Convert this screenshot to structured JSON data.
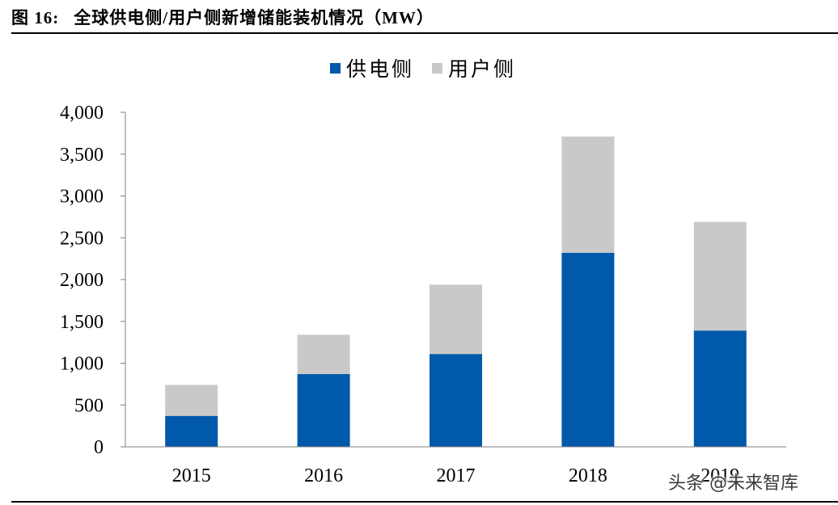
{
  "figure_label": "图 16:",
  "figure_title": "全球供电侧/用户侧新增储能装机情况（MW）",
  "watermark": "头条 @未来智库",
  "chart_data": {
    "type": "bar",
    "stacked": true,
    "title": "全球供电侧/用户侧新增储能装机情况（MW）",
    "xlabel": "",
    "ylabel": "",
    "categories": [
      "2015",
      "2016",
      "2017",
      "2018",
      "2019"
    ],
    "series": [
      {
        "name": "供电侧",
        "color": "#0059AB",
        "values": [
          370,
          870,
          1110,
          2320,
          1390
        ]
      },
      {
        "name": "用户侧",
        "color": "#C9C9C9",
        "values": [
          370,
          470,
          830,
          1390,
          1300
        ]
      }
    ],
    "ylim": [
      0,
      4000
    ],
    "ytick_values": [
      0,
      500,
      1000,
      1500,
      2000,
      2500,
      3000,
      3500,
      4000
    ],
    "ytick_labels": [
      "0",
      "500",
      "1,000",
      "1,500",
      "2,000",
      "2,500",
      "3,000",
      "3,500",
      "4,000"
    ],
    "grid": false,
    "legend_position": "top-center"
  }
}
